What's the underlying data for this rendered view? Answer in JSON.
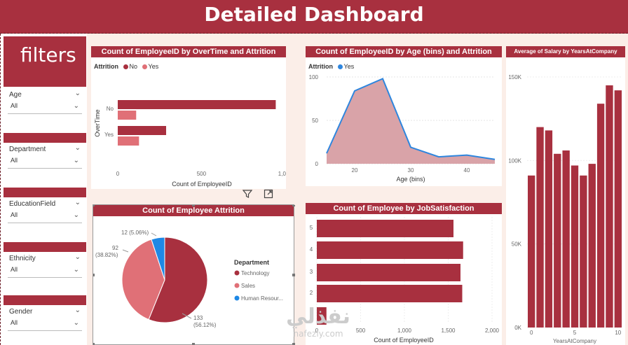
{
  "header": {
    "title": "Detailed Dashboard"
  },
  "sidebar": {
    "title": "filters",
    "slicers": [
      {
        "label": "Age",
        "value": "All"
      },
      {
        "label": "Department",
        "value": "All"
      },
      {
        "label": "EducationField",
        "value": "All"
      },
      {
        "label": "Ethnicity",
        "value": "All"
      },
      {
        "label": "Gender",
        "value": "All"
      }
    ]
  },
  "toolbar": {
    "filter_icon": "filter-icon",
    "focus_icon": "focus-mode-icon",
    "more_label": "⋯"
  },
  "watermark": {
    "arabic": "نفذلي",
    "latin": "nafezly.com"
  },
  "chart_data": [
    {
      "type": "bar",
      "title": "Count of EmployeeID by OverTime and Attrition",
      "legend_title": "Attrition",
      "categories": [
        "No",
        "Yes"
      ],
      "series": [
        {
          "name": "No",
          "values": [
            944,
            289
          ],
          "color": "#a8303f"
        },
        {
          "name": "Yes",
          "values": [
            110,
            127
          ],
          "color": "#e07077"
        }
      ],
      "xlabel": "Count of EmployeeID",
      "ylabel": "OverTime",
      "xticks": [
        "0",
        "500",
        "1,000"
      ],
      "xlim": [
        0,
        1000
      ]
    },
    {
      "type": "area",
      "title": "Count of EmployeeID by Age (bins) and Attrition",
      "legend_title": "Attrition",
      "series_name": "Yes",
      "x": [
        15,
        20,
        25,
        30,
        35,
        40,
        45
      ],
      "values": [
        12,
        84,
        98,
        19,
        8,
        10,
        5
      ],
      "xlabel": "Age (bins)",
      "ylim": [
        0,
        100
      ],
      "xticks": [
        "20",
        "30",
        "40"
      ],
      "yticks": [
        "0",
        "50",
        "100"
      ],
      "color": "#2e86de",
      "fill": "#d9a3a8"
    },
    {
      "type": "bar",
      "title": "Average of Salary by YearsAtCompany",
      "x": [
        0,
        1,
        2,
        3,
        4,
        5,
        6,
        7,
        8,
        9,
        10
      ],
      "values": [
        91000,
        120000,
        118000,
        104000,
        106000,
        97000,
        91000,
        98000,
        134000,
        145000,
        142000
      ],
      "xlabel": "YearsAtCompany",
      "ylim": [
        0,
        150000
      ],
      "yticks": [
        "0K",
        "50K",
        "100K",
        "150K"
      ],
      "xticks": [
        "0",
        "5",
        "10"
      ],
      "color": "#a8303f"
    },
    {
      "type": "pie",
      "title": "Count of Employee Attrition",
      "legend_title": "Department",
      "slices": [
        {
          "label": "Technology",
          "value": 133,
          "pct": "56.12%",
          "color": "#a8303f"
        },
        {
          "label": "Sales",
          "value": 92,
          "pct": "38.82%",
          "color": "#e07077"
        },
        {
          "label": "Human Resour...",
          "value": 12,
          "pct": "5.06%",
          "color": "#1e88e5"
        }
      ],
      "data_labels": [
        "133\n(56.12%)",
        "92\n(38.82%)",
        "12 (5.06%)"
      ]
    },
    {
      "type": "bar",
      "title": "Count of Employee by JobSatisfaction",
      "categories": [
        "5",
        "4",
        "3",
        "2",
        "1"
      ],
      "values": [
        1560,
        1670,
        1640,
        1660,
        110
      ],
      "xlabel": "Count of EmployeeID",
      "xticks": [
        "0",
        "500",
        "1,000",
        "1,500",
        "2,000"
      ],
      "xlim": [
        0,
        2000
      ],
      "color": "#a8303f"
    }
  ]
}
